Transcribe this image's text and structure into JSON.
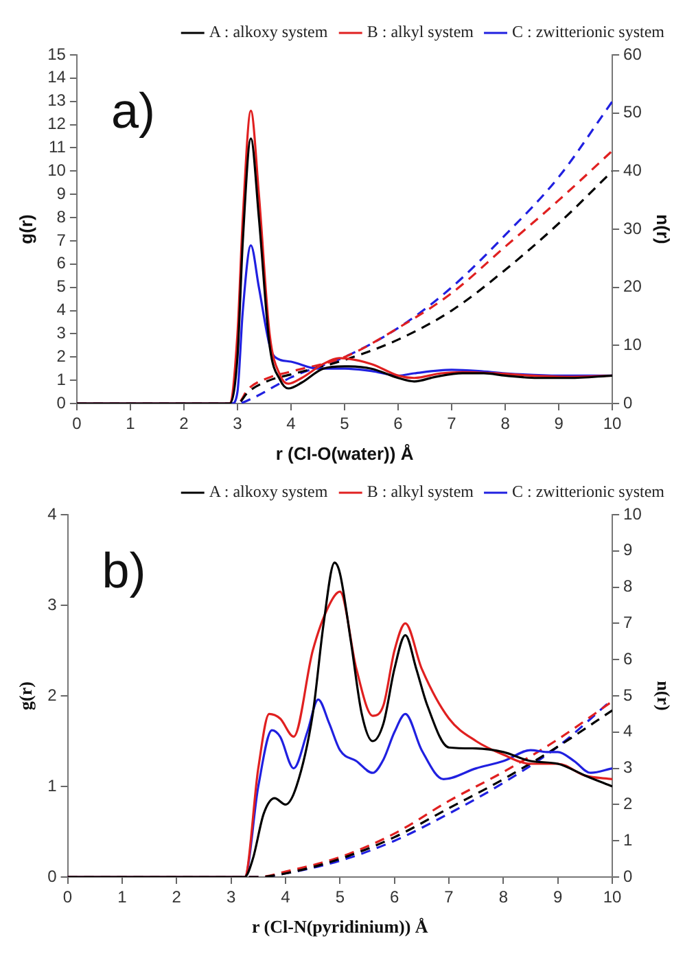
{
  "chart_data": [
    {
      "type": "line",
      "annotations": [
        "a)"
      ],
      "xlabel": "r (Cl-O(water)) Å",
      "ylabel": "g(r)",
      "y2label": "n(r)",
      "xlim": [
        0,
        10
      ],
      "xticks": [
        0,
        1,
        2,
        3,
        4,
        5,
        6,
        7,
        8,
        9,
        10
      ],
      "ylim": [
        0,
        15
      ],
      "yticks": [
        0,
        1,
        2,
        3,
        4,
        5,
        6,
        7,
        8,
        9,
        10,
        11,
        12,
        13,
        14,
        15
      ],
      "y2lim": [
        0,
        60
      ],
      "y2ticks": [
        0,
        10,
        20,
        30,
        40,
        50,
        60
      ],
      "grid": false,
      "legend": "top right",
      "marker": "none",
      "series": [
        {
          "name": "A : alkoxy system",
          "color": "#000000",
          "line_style": "solid",
          "x": [
            0,
            2.85,
            3.0,
            3.1,
            3.25,
            3.4,
            3.6,
            3.8,
            3.95,
            4.2,
            4.6,
            5.0,
            5.5,
            6.0,
            6.3,
            6.7,
            7.2,
            7.6,
            8.0,
            8.6,
            9.2,
            10
          ],
          "values": [
            0,
            0,
            2,
            7,
            11.4,
            8,
            2.5,
            1.0,
            0.65,
            0.9,
            1.5,
            1.6,
            1.5,
            1.1,
            0.95,
            1.15,
            1.3,
            1.3,
            1.2,
            1.1,
            1.1,
            1.2
          ]
        },
        {
          "name": "B : alkyl system",
          "color": "#e02020",
          "line_style": "solid",
          "x": [
            0,
            2.85,
            3.0,
            3.1,
            3.25,
            3.4,
            3.6,
            3.8,
            3.95,
            4.2,
            4.6,
            4.9,
            5.5,
            6.0,
            6.3,
            6.8,
            7.2,
            7.8,
            8.5,
            9.2,
            10
          ],
          "values": [
            0,
            0,
            3,
            8,
            12.6,
            9,
            3,
            1.2,
            0.85,
            1.1,
            1.7,
            1.95,
            1.7,
            1.2,
            1.1,
            1.3,
            1.35,
            1.3,
            1.2,
            1.15,
            1.2
          ]
        },
        {
          "name": "C : zwitterionic system",
          "color": "#2020e0",
          "line_style": "solid",
          "x": [
            0,
            2.9,
            3.0,
            3.1,
            3.25,
            3.4,
            3.6,
            3.7,
            4.0,
            4.5,
            5.0,
            5.5,
            6.0,
            6.3,
            7.0,
            7.5,
            8.0,
            9.0,
            10
          ],
          "values": [
            0,
            0,
            0.5,
            4,
            6.8,
            5,
            2.5,
            2.0,
            1.8,
            1.5,
            1.5,
            1.4,
            1.2,
            1.3,
            1.45,
            1.4,
            1.3,
            1.2,
            1.2
          ]
        },
        {
          "color": "#000000",
          "line_style": "dashed",
          "axis": "y2",
          "x": [
            0,
            3.0,
            3.2,
            3.6,
            4.0,
            5.0,
            6.0,
            7.0,
            8.0,
            9.0,
            10
          ],
          "values": [
            0,
            0,
            2,
            4,
            5,
            7.5,
            11,
            16,
            23,
            31,
            40
          ]
        },
        {
          "color": "#e02020",
          "line_style": "dashed",
          "axis": "y2",
          "x": [
            0,
            3.0,
            3.2,
            3.6,
            4.0,
            5.0,
            6.0,
            7.0,
            8.0,
            9.0,
            10
          ],
          "values": [
            0,
            0,
            2.5,
            4.5,
            5.5,
            8,
            13,
            19,
            27,
            35,
            43.5
          ]
        },
        {
          "color": "#2020e0",
          "line_style": "dashed",
          "axis": "y2",
          "x": [
            0,
            3.0,
            3.3,
            3.7,
            4.0,
            5.0,
            6.0,
            7.0,
            8.0,
            9.0,
            10
          ],
          "values": [
            0,
            0,
            1,
            3,
            4.5,
            8,
            13,
            20,
            29,
            39,
            52
          ]
        }
      ]
    },
    {
      "type": "line",
      "annotations": [
        "b)"
      ],
      "xlabel": "r (Cl-N(pyridinium)) Å",
      "ylabel": "g(r)",
      "y2label": "n(r)",
      "xlim": [
        0,
        10
      ],
      "xticks": [
        0,
        1,
        2,
        3,
        4,
        5,
        6,
        7,
        8,
        9,
        10
      ],
      "ylim": [
        0,
        4
      ],
      "yticks": [
        0,
        1,
        2,
        3,
        4
      ],
      "y2lim": [
        0,
        10
      ],
      "y2ticks": [
        0,
        1,
        2,
        3,
        4,
        5,
        6,
        7,
        8,
        9,
        10
      ],
      "grid": false,
      "legend": "top right",
      "marker": "none",
      "series": [
        {
          "name": "A : alkoxy system",
          "color": "#000000",
          "line_style": "solid",
          "x": [
            0,
            3.25,
            3.4,
            3.6,
            3.8,
            4.0,
            4.2,
            4.5,
            4.7,
            4.9,
            5.0,
            5.2,
            5.4,
            5.6,
            5.8,
            6.0,
            6.2,
            6.4,
            6.6,
            7.0,
            7.5,
            8.0,
            8.5,
            9.0,
            9.5,
            10
          ],
          "values": [
            0,
            0,
            0.2,
            0.7,
            0.87,
            0.8,
            1.0,
            1.8,
            2.8,
            3.47,
            3.35,
            2.6,
            1.8,
            1.5,
            1.7,
            2.3,
            2.67,
            2.3,
            1.9,
            1.43,
            1.42,
            1.38,
            1.28,
            1.25,
            1.12,
            1.0
          ]
        },
        {
          "name": "B : alkyl system",
          "color": "#e02020",
          "line_style": "solid",
          "x": [
            0,
            3.25,
            3.5,
            3.7,
            3.9,
            4.15,
            4.5,
            4.8,
            5.0,
            5.3,
            5.6,
            5.8,
            6.0,
            6.2,
            6.5,
            7.0,
            7.5,
            8.0,
            8.5,
            9.0,
            9.5,
            10
          ],
          "values": [
            0,
            0,
            1.2,
            1.8,
            1.75,
            1.55,
            2.5,
            3.0,
            3.15,
            2.3,
            1.78,
            1.9,
            2.5,
            2.8,
            2.3,
            1.75,
            1.5,
            1.35,
            1.25,
            1.25,
            1.12,
            1.08
          ]
        },
        {
          "name": "C : zwitterionic system",
          "color": "#2020e0",
          "line_style": "solid",
          "x": [
            0,
            3.25,
            3.5,
            3.75,
            3.9,
            4.15,
            4.4,
            4.6,
            4.8,
            5.0,
            5.3,
            5.6,
            5.8,
            6.0,
            6.2,
            6.5,
            6.9,
            7.5,
            8.0,
            8.5,
            8.8,
            9.0,
            9.3,
            9.6,
            10
          ],
          "values": [
            0,
            0,
            1.0,
            1.62,
            1.55,
            1.2,
            1.6,
            1.96,
            1.7,
            1.4,
            1.28,
            1.15,
            1.3,
            1.6,
            1.8,
            1.4,
            1.08,
            1.2,
            1.28,
            1.4,
            1.38,
            1.38,
            1.28,
            1.15,
            1.2
          ]
        },
        {
          "color": "#000000",
          "line_style": "dashed",
          "axis": "y2",
          "x": [
            0,
            3.5,
            4.0,
            5.0,
            6.0,
            7.0,
            8.0,
            9.0,
            10
          ],
          "values": [
            0,
            0,
            0.1,
            0.5,
            1.1,
            1.9,
            2.7,
            3.6,
            4.6
          ]
        },
        {
          "color": "#e02020",
          "line_style": "dashed",
          "axis": "y2",
          "x": [
            0,
            3.5,
            4.0,
            5.0,
            6.0,
            7.0,
            8.0,
            9.0,
            10
          ],
          "values": [
            0,
            0,
            0.15,
            0.55,
            1.2,
            2.1,
            2.9,
            3.8,
            4.85
          ]
        },
        {
          "color": "#2020e0",
          "line_style": "dashed",
          "axis": "y2",
          "x": [
            0,
            3.5,
            4.0,
            5.0,
            6.0,
            7.0,
            8.0,
            9.0,
            10
          ],
          "values": [
            0,
            0,
            0.1,
            0.45,
            1.0,
            1.75,
            2.6,
            3.6,
            4.9
          ]
        }
      ]
    }
  ]
}
